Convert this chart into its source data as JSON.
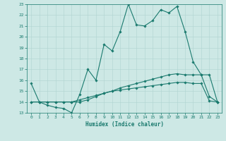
{
  "xlabel": "Humidex (Indice chaleur)",
  "xlim": [
    -0.5,
    23.5
  ],
  "ylim": [
    13,
    23
  ],
  "yticks": [
    13,
    14,
    15,
    16,
    17,
    18,
    19,
    20,
    21,
    22,
    23
  ],
  "xticks": [
    0,
    1,
    2,
    3,
    4,
    5,
    6,
    7,
    8,
    9,
    10,
    11,
    12,
    13,
    14,
    15,
    16,
    17,
    18,
    19,
    20,
    21,
    22,
    23
  ],
  "bg_color": "#cde8e5",
  "grid_color": "#b0d4d0",
  "line_color": "#1a7a6e",
  "line1_x": [
    0,
    1,
    2,
    3,
    4,
    5,
    6,
    7,
    8,
    9,
    10,
    11,
    12,
    13,
    14,
    15,
    16,
    17,
    18,
    19,
    20,
    21,
    22,
    23
  ],
  "line1_y": [
    15.7,
    14.0,
    13.7,
    13.5,
    13.4,
    13.0,
    14.7,
    17.0,
    16.0,
    19.3,
    18.7,
    20.5,
    23.0,
    21.1,
    21.0,
    21.5,
    22.5,
    22.2,
    22.8,
    20.5,
    17.7,
    16.5,
    16.5,
    14.0
  ],
  "line2_x": [
    0,
    1,
    2,
    3,
    4,
    5,
    6,
    7,
    8,
    9,
    10,
    11,
    12,
    13,
    14,
    15,
    16,
    17,
    18,
    19,
    20,
    21,
    22,
    23
  ],
  "line2_y": [
    14.0,
    14.0,
    14.0,
    14.0,
    14.0,
    14.0,
    14.0,
    14.2,
    14.5,
    14.8,
    15.0,
    15.3,
    15.5,
    15.7,
    15.9,
    16.1,
    16.3,
    16.5,
    16.6,
    16.5,
    16.5,
    16.5,
    14.5,
    14.0
  ],
  "line3_x": [
    0,
    1,
    2,
    3,
    4,
    5,
    6,
    7,
    8,
    9,
    10,
    11,
    12,
    13,
    14,
    15,
    16,
    17,
    18,
    19,
    20,
    21,
    22,
    23
  ],
  "line3_y": [
    14.0,
    14.0,
    14.0,
    14.0,
    14.0,
    14.0,
    14.2,
    14.4,
    14.6,
    14.8,
    15.0,
    15.1,
    15.2,
    15.3,
    15.4,
    15.5,
    15.6,
    15.7,
    15.8,
    15.8,
    15.7,
    15.7,
    14.1,
    14.0
  ]
}
